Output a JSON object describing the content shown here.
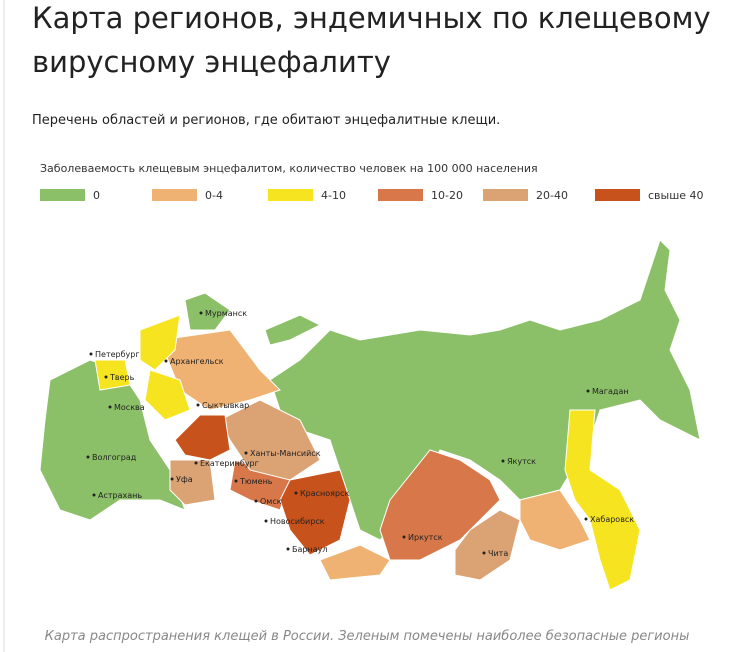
{
  "header": {
    "title_lines": [
      "Карта регионов, эндемичных по клещевому",
      "вирусному энцефалиту"
    ],
    "subtitle": "Перечень областей и регионов, где обитают энцефалитные клещи."
  },
  "map": {
    "legend_title": "Заболеваемость клещевым энцефалитом, количество человек на 100 000 населения",
    "legend": [
      {
        "label": "0",
        "color": "#8cc068"
      },
      {
        "label": "0-4",
        "color": "#efb273"
      },
      {
        "label": "4-10",
        "color": "#f6e420"
      },
      {
        "label": "10-20",
        "color": "#d8784a"
      },
      {
        "label": "20-40",
        "color": "#dba274"
      },
      {
        "label": "свыше 40",
        "color": "#c8521b"
      }
    ],
    "cities": [
      "Мурманск",
      "Петербург",
      "Архангельск",
      "Тверь",
      "Москва",
      "Сыктывкар",
      "Ханты-Мансийск",
      "Волгоград",
      "Екатеринбург",
      "Уфа",
      "Тюмень",
      "Красноярск",
      "Омск",
      "Астрахань",
      "Новосибирск",
      "Барнаул",
      "Иркутск",
      "Якутск",
      "Магадан",
      "Хабаровск",
      "Чита"
    ]
  },
  "caption": "Карта распространения клещей в России. Зеленым помечены наиболее безопасные регионы"
}
